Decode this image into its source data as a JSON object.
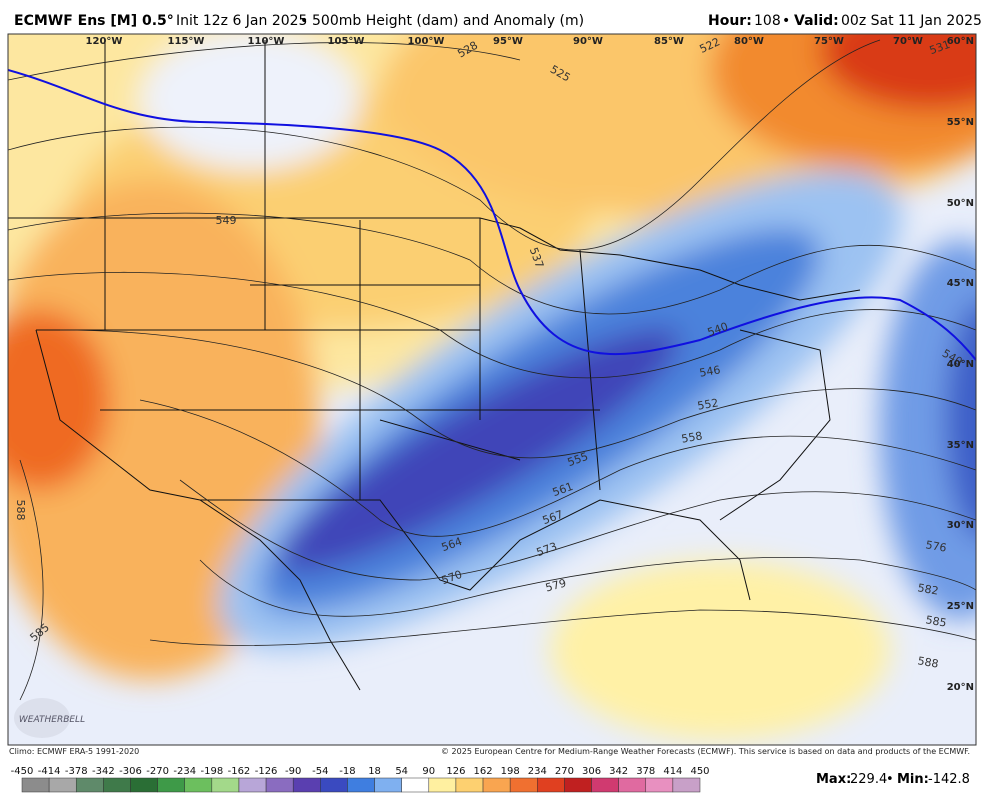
{
  "header": {
    "model": "ECMWF Ens [M] 0.5°",
    "init": "Init 12z 6 Jan 2025",
    "separator": "•",
    "field": "500mb Height (dam) and Anomaly (m)",
    "hour_label": "Hour:",
    "hour": "108",
    "valid_label": "Valid:",
    "valid": "00z Sat 11 Jan 2025"
  },
  "map": {
    "longitudes": [
      "120°W",
      "115°W",
      "110°W",
      "105°W",
      "100°W",
      "95°W",
      "90°W",
      "85°W",
      "80°W",
      "75°W",
      "70°W"
    ],
    "latitudes": [
      "60°N",
      "55°N",
      "50°N",
      "45°N",
      "40°N",
      "35°N",
      "30°N",
      "25°N",
      "20°N"
    ],
    "contour_labels": [
      "528",
      "525",
      "522",
      "531",
      "549",
      "537",
      "540",
      "546",
      "552",
      "558",
      "555",
      "561",
      "567",
      "564",
      "570",
      "573",
      "579",
      "576",
      "582",
      "585",
      "588",
      "585",
      "588",
      "540"
    ],
    "logo": "WEATHERBELL"
  },
  "footer": {
    "climo": "Climo: ECMWF ERA-5 1991-2020",
    "copyright": "© 2025 European Centre for Medium-Range Weather Forecasts (ECMWF). This service is based on data and products of the ECMWF."
  },
  "colorbar": {
    "ticks": [
      -450,
      -414,
      -378,
      -342,
      -306,
      -270,
      -234,
      -198,
      -162,
      -126,
      -90,
      -54,
      -18,
      18,
      54,
      90,
      126,
      162,
      198,
      234,
      270,
      306,
      342,
      378,
      414,
      450
    ]
  },
  "stats": {
    "max_label": "Max:",
    "max": "229.4",
    "separator": "•",
    "min_label": "Min:",
    "min": "-142.8"
  }
}
